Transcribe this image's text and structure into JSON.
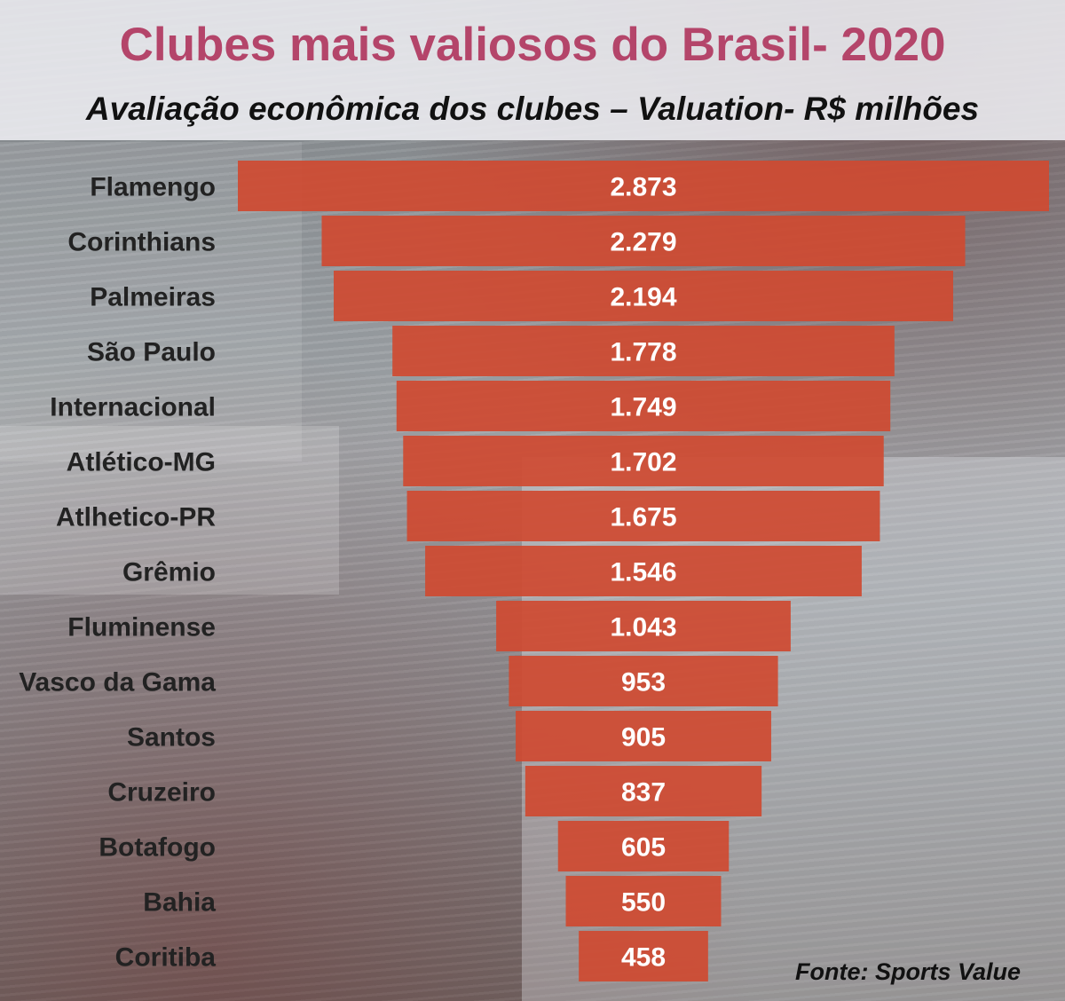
{
  "title": "Clubes mais valiosos do Brasil- 2020",
  "subtitle": "Avaliação econômica dos clubes – Valuation-  R$ milhões",
  "source": "Fonte: Sports Value",
  "colors": {
    "bar": "#cf4a32",
    "title": "#b4456a",
    "label": "#222222",
    "value": "#ffffff"
  },
  "chart_data": {
    "type": "bar",
    "orientation": "horizontal-centered-funnel",
    "title": "Clubes mais valiosos do Brasil- 2020",
    "subtitle": "Avaliação econômica dos clubes – Valuation-  R$ milhões",
    "xlabel": "",
    "ylabel": "",
    "categories": [
      "Flamengo",
      "Corinthians",
      "Palmeiras",
      "São Paulo",
      "Internacional",
      "Atlético-MG",
      "Atlhetico-PR",
      "Grêmio",
      "Fluminense",
      "Vasco da Gama",
      "Santos",
      "Cruzeiro",
      "Botafogo",
      "Bahia",
      "Coritiba"
    ],
    "values": [
      2873,
      2279,
      2194,
      1778,
      1749,
      1702,
      1675,
      1546,
      1043,
      953,
      905,
      837,
      605,
      550,
      458
    ],
    "value_labels": [
      "2.873",
      "2.279",
      "2.194",
      "1.778",
      "1.749",
      "1.702",
      "1.675",
      "1.546",
      "1.043",
      "953",
      "905",
      "837",
      "605",
      "550",
      "458"
    ],
    "grid": false,
    "legend": "none"
  }
}
